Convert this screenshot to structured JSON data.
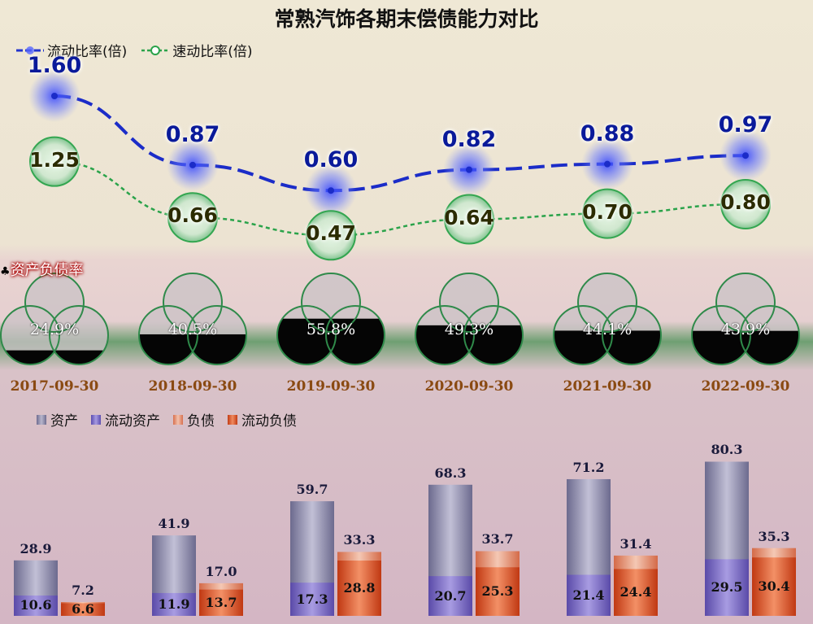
{
  "title": "常熟汽饰各期末偿债能力对比",
  "legend_top": [
    "流动比率(倍)",
    "速动比率(倍)"
  ],
  "debt_ratio_title": "资产负债率",
  "legend_bottom": [
    "资产",
    "流动资产",
    "负债",
    "流动负债"
  ],
  "colors": {
    "current_ratio": "#2233cc",
    "quick_ratio": "#2aa34a",
    "assets": "#8a88a8",
    "current_assets": "#7b6cc0",
    "liabilities": "#e2876a",
    "current_liabilities": "#d64a1e"
  },
  "chart_data": {
    "type": "bar",
    "categories": [
      "2017-09-30",
      "2018-09-30",
      "2019-09-30",
      "2020-09-30",
      "2021-09-30",
      "2022-09-30"
    ],
    "current_ratio": {
      "name": "流动比率(倍)",
      "values": [
        "1.60",
        "0.87",
        "0.60",
        "0.82",
        "0.88",
        "0.97"
      ]
    },
    "quick_ratio": {
      "name": "速动比率(倍)",
      "values": [
        "1.25",
        "0.66",
        "0.47",
        "0.64",
        "0.70",
        "0.80"
      ]
    },
    "debt_ratio": {
      "name": "资产负债率",
      "values": [
        "24.9%",
        "40.5%",
        "55.8%",
        "49.3%",
        "44.1%",
        "43.9%"
      ],
      "fraction": [
        0.249,
        0.405,
        0.558,
        0.493,
        0.441,
        0.439
      ]
    },
    "series": [
      {
        "name": "资产",
        "values": [
          "28.9",
          "41.9",
          "59.7",
          "68.3",
          "71.2",
          "80.3"
        ]
      },
      {
        "name": "流动资产",
        "values": [
          "10.6",
          "11.9",
          "17.3",
          "20.7",
          "21.4",
          "29.5"
        ]
      },
      {
        "name": "负债",
        "values": [
          "7.2",
          "17.0",
          "33.3",
          "33.7",
          "31.4",
          "35.3"
        ]
      },
      {
        "name": "流动负债",
        "values": [
          "6.6",
          "13.7",
          "28.8",
          "25.3",
          "24.4",
          "30.4"
        ]
      }
    ]
  }
}
